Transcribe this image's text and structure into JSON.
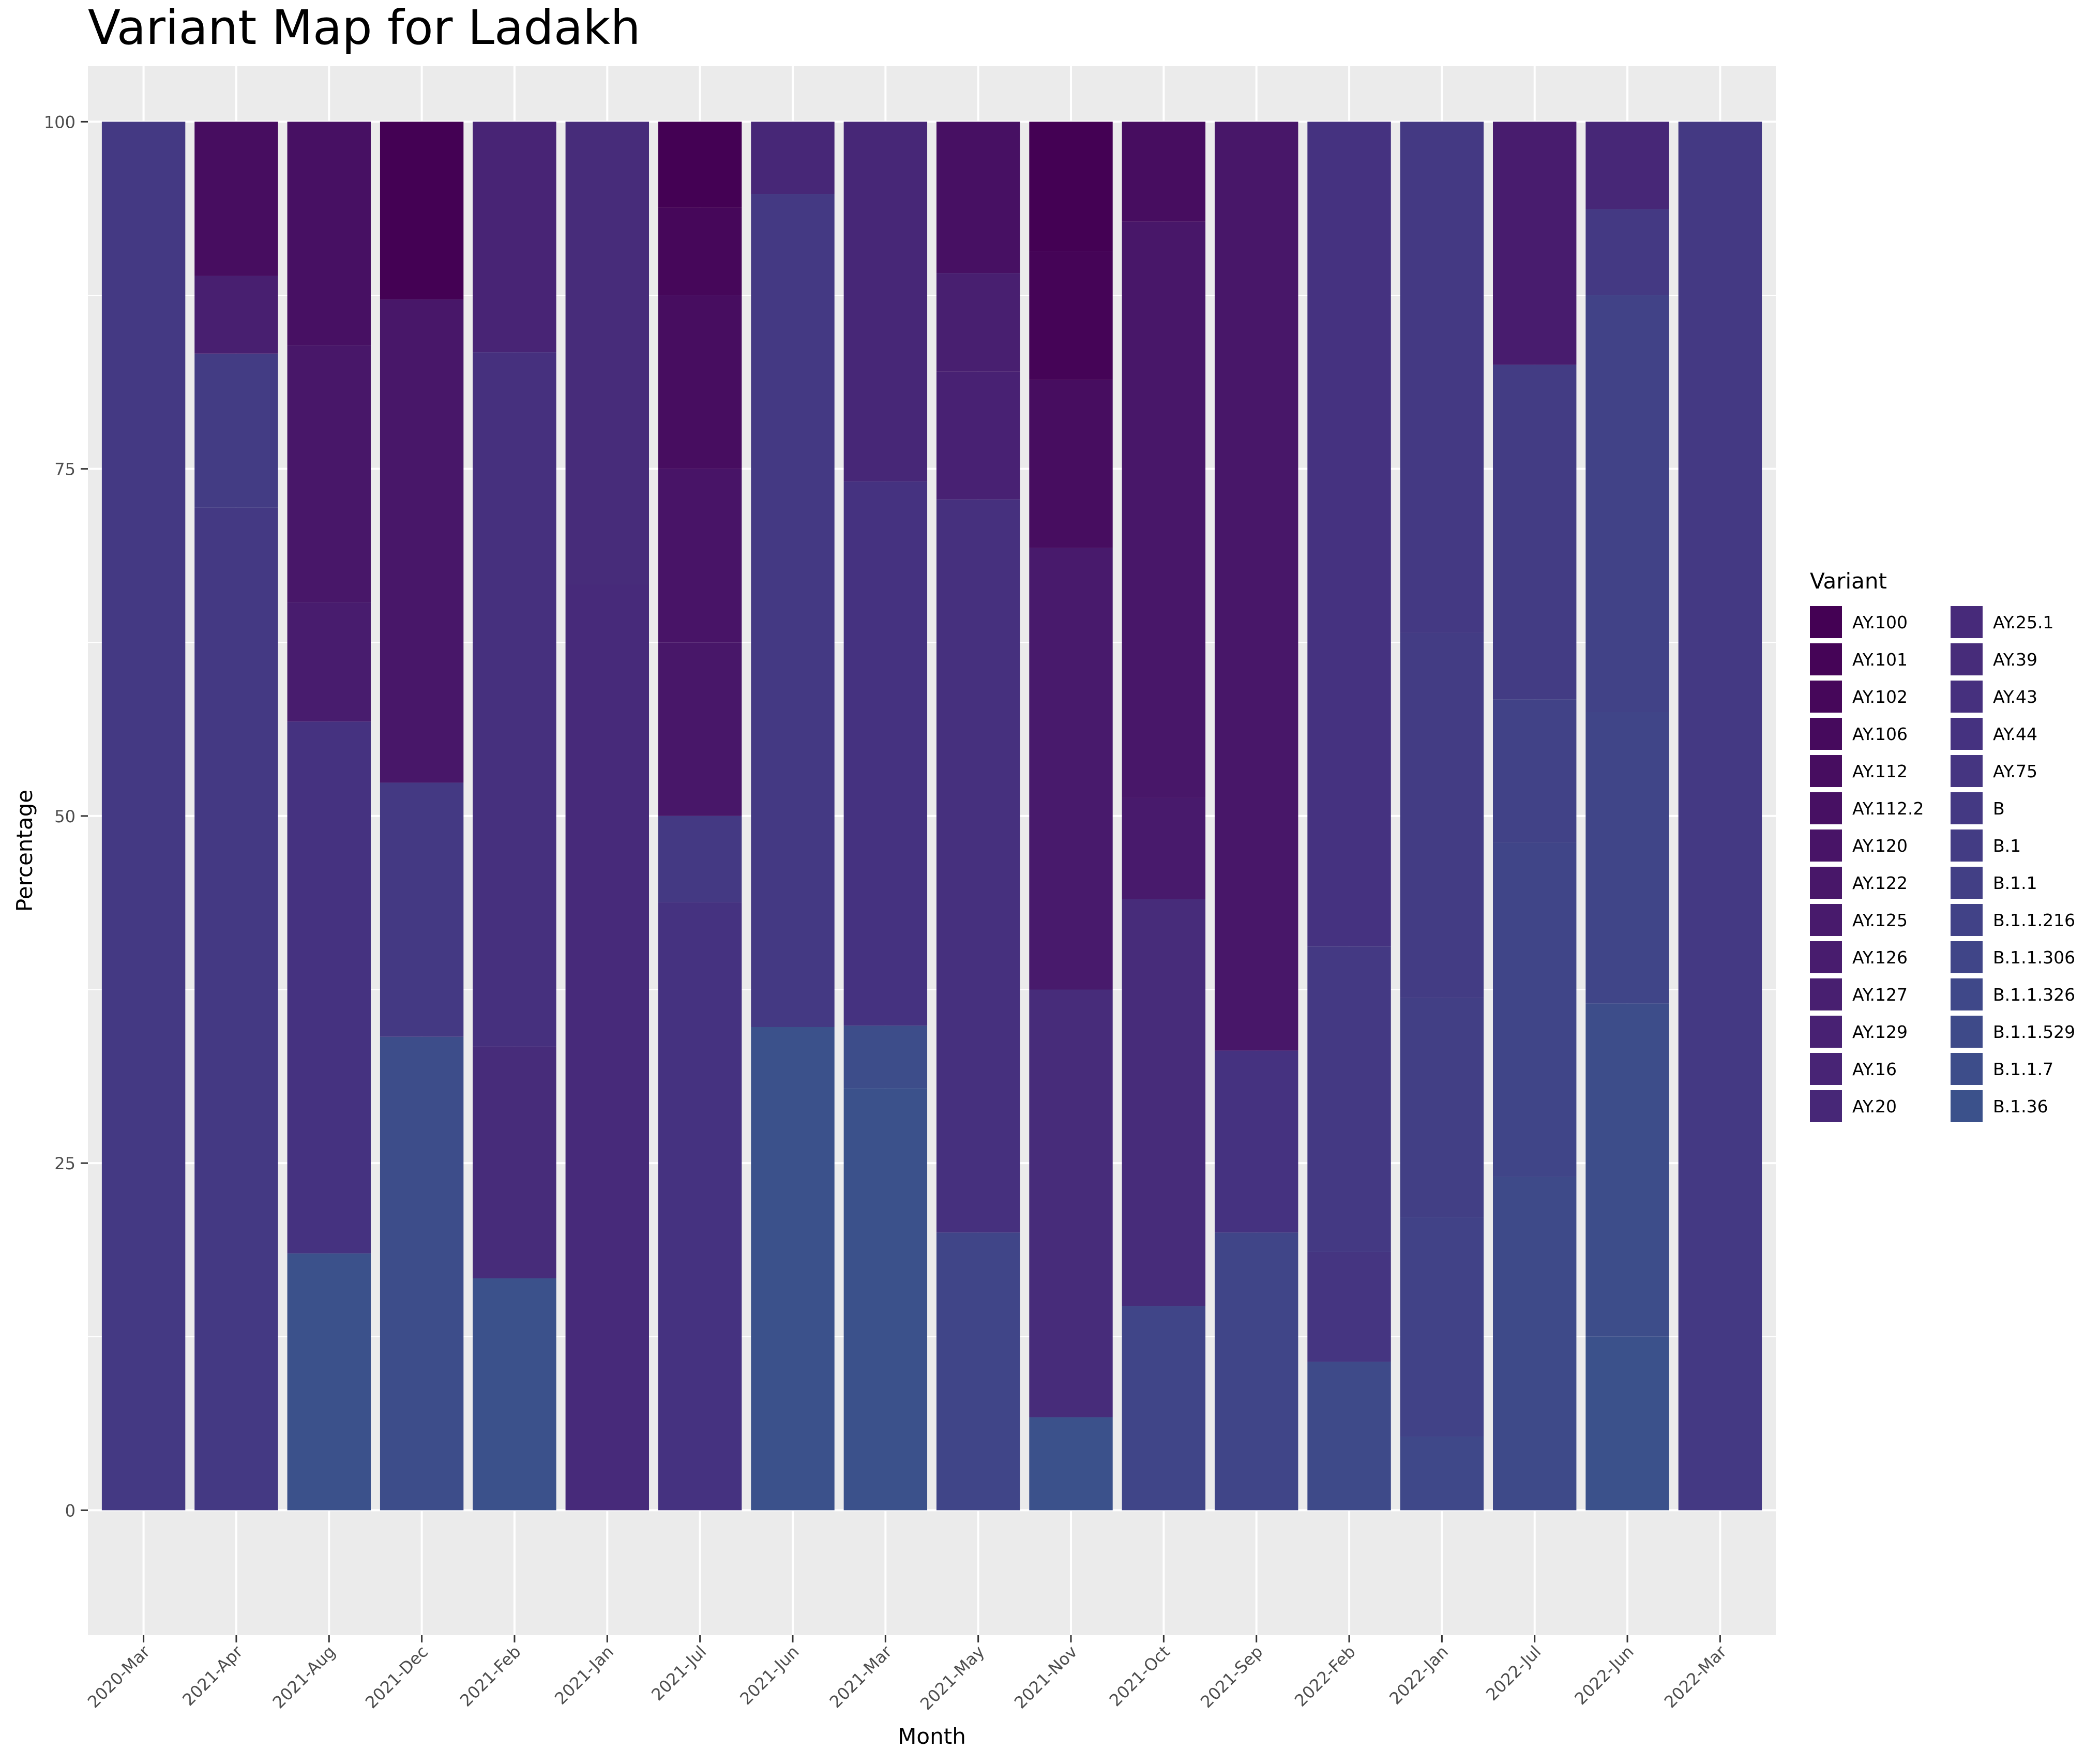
{
  "chart_data": {
    "type": "bar",
    "stacked": true,
    "title": "Variant Map for Ladakh",
    "xlabel": "Month",
    "ylabel": "Percentage",
    "ylim": [
      -9,
      104
    ],
    "yticks": [
      0,
      25,
      50,
      75,
      100
    ],
    "grid": true,
    "legend_title": "Variant",
    "legend_position": "right",
    "panel_background": "#EBEBEB",
    "grid_color": "#FFFFFF",
    "legend_items": [
      {
        "label": "AY.100",
        "color": "#440154"
      },
      {
        "label": "AY.101",
        "color": "#450457"
      },
      {
        "label": "AY.102",
        "color": "#46075A"
      },
      {
        "label": "AY.106",
        "color": "#460A5D"
      },
      {
        "label": "AY.112",
        "color": "#470D60"
      },
      {
        "label": "AY.112.2",
        "color": "#471063"
      },
      {
        "label": "AY.120",
        "color": "#481467"
      },
      {
        "label": "AY.122",
        "color": "#481769"
      },
      {
        "label": "AY.125",
        "color": "#481A6C"
      },
      {
        "label": "AY.126",
        "color": "#481C6E"
      },
      {
        "label": "AY.127",
        "color": "#481F70"
      },
      {
        "label": "AY.129",
        "color": "#482173"
      },
      {
        "label": "AY.16",
        "color": "#482475"
      },
      {
        "label": "AY.20",
        "color": "#472777"
      },
      {
        "label": "AY.25.1",
        "color": "#472A7A"
      },
      {
        "label": "AY.39",
        "color": "#472C7A"
      },
      {
        "label": "AY.43",
        "color": "#46307E"
      },
      {
        "label": "AY.44",
        "color": "#453280"
      },
      {
        "label": "AY.75",
        "color": "#453581"
      },
      {
        "label": "B",
        "color": "#443983"
      },
      {
        "label": "B.1",
        "color": "#433C84"
      },
      {
        "label": "B.1.1",
        "color": "#423F85"
      },
      {
        "label": "B.1.1.216",
        "color": "#414287"
      },
      {
        "label": "B.1.1.306",
        "color": "#404588"
      },
      {
        "label": "B.1.1.326",
        "color": "#3F4889"
      },
      {
        "label": "B.1.1.529",
        "color": "#3E4A89"
      },
      {
        "label": "B.1.1.7",
        "color": "#3D4D8A"
      },
      {
        "label": "B.1.36",
        "color": "#3B518B"
      }
    ],
    "categories": [
      "2020-Mar",
      "2021-Apr",
      "2021-Aug",
      "2021-Dec",
      "2021-Feb",
      "2021-Jan",
      "2021-Jul",
      "2021-Jun",
      "2021-Mar",
      "2021-May",
      "2021-Nov",
      "2021-Oct",
      "2021-Sep",
      "2022-Feb",
      "2022-Jan",
      "2022-Jul",
      "2022-Jun",
      "2022-Mar"
    ],
    "stacks": [
      [
        {
          "variant": "B",
          "value": 100
        }
      ],
      [
        {
          "variant": "B",
          "value": 72.2
        },
        {
          "variant": "B.1",
          "value": 11.1
        },
        {
          "variant": "AY.127",
          "value": 5.6
        },
        {
          "variant": "AY.112",
          "value": 11.1
        }
      ],
      [
        {
          "variant": "B.1.36",
          "value": 18.5
        },
        {
          "variant": "AY.44",
          "value": 38.3
        },
        {
          "variant": "AY.126",
          "value": 8.6
        },
        {
          "variant": "AY.122",
          "value": 18.5
        },
        {
          "variant": "AY.112.2",
          "value": 16.1
        }
      ],
      [
        {
          "variant": "B.1.1.7",
          "value": 34.1
        },
        {
          "variant": "B",
          "value": 18.3
        },
        {
          "variant": "AY.122",
          "value": 34.8
        },
        {
          "variant": "AY.100",
          "value": 12.8
        }
      ],
      [
        {
          "variant": "B.1.36",
          "value": 16.7
        },
        {
          "variant": "AY.39",
          "value": 16.7
        },
        {
          "variant": "AY.43",
          "value": 50.0
        },
        {
          "variant": "AY.16",
          "value": 16.6
        }
      ],
      [
        {
          "variant": "AY.25.1",
          "value": 66.7
        },
        {
          "variant": "AY.39",
          "value": 33.3
        }
      ],
      [
        {
          "variant": "AY.44",
          "value": 43.8
        },
        {
          "variant": "B",
          "value": 6.2
        },
        {
          "variant": "AY.122",
          "value": 12.5
        },
        {
          "variant": "AY.120",
          "value": 12.5
        },
        {
          "variant": "AY.112",
          "value": 12.5
        },
        {
          "variant": "AY.102",
          "value": 6.3
        },
        {
          "variant": "AY.100",
          "value": 6.2
        }
      ],
      [
        {
          "variant": "B.1.36",
          "value": 34.8
        },
        {
          "variant": "B",
          "value": 60.0
        },
        {
          "variant": "AY.20",
          "value": 5.2
        }
      ],
      [
        {
          "variant": "B.1.36",
          "value": 30.4
        },
        {
          "variant": "B.1.1.7",
          "value": 4.5
        },
        {
          "variant": "AY.44",
          "value": 39.2
        },
        {
          "variant": "AY.20",
          "value": 25.9
        }
      ],
      [
        {
          "variant": "B.1.1.306",
          "value": 20.0
        },
        {
          "variant": "AY.43",
          "value": 52.8
        },
        {
          "variant": "AY.129",
          "value": 9.2
        },
        {
          "variant": "AY.127",
          "value": 7.1
        },
        {
          "variant": "AY.112.2",
          "value": 10.9
        }
      ],
      [
        {
          "variant": "B.1.36",
          "value": 6.7
        },
        {
          "variant": "AY.39",
          "value": 30.8
        },
        {
          "variant": "AY.125",
          "value": 31.8
        },
        {
          "variant": "AY.112",
          "value": 12.1
        },
        {
          "variant": "AY.101",
          "value": 9.3
        },
        {
          "variant": "AY.100",
          "value": 9.3
        }
      ],
      [
        {
          "variant": "B.1.1.306",
          "value": 14.7
        },
        {
          "variant": "AY.39",
          "value": 29.3
        },
        {
          "variant": "AY.125",
          "value": 7.3
        },
        {
          "variant": "AY.122",
          "value": 41.5
        },
        {
          "variant": "AY.112",
          "value": 7.2
        }
      ],
      [
        {
          "variant": "B.1.1.306",
          "value": 20.0
        },
        {
          "variant": "AY.44",
          "value": 13.1
        },
        {
          "variant": "AY.122",
          "value": 66.9
        }
      ],
      [
        {
          "variant": "B.1.1.529",
          "value": 10.7
        },
        {
          "variant": "AY.75",
          "value": 7.9
        },
        {
          "variant": "B",
          "value": 22.0
        },
        {
          "variant": "AY.44",
          "value": 59.4
        }
      ],
      [
        {
          "variant": "B.1.1.326",
          "value": 5.3
        },
        {
          "variant": "B.1.1.216",
          "value": 15.8
        },
        {
          "variant": "B.1.1",
          "value": 15.8
        },
        {
          "variant": "B.1",
          "value": 26.3
        },
        {
          "variant": "B",
          "value": 36.8
        }
      ],
      [
        {
          "variant": "B.1.1.529",
          "value": 24.0
        },
        {
          "variant": "B.1.1.306",
          "value": 24.1
        },
        {
          "variant": "B.1.1.216",
          "value": 10.3
        },
        {
          "variant": "B.1",
          "value": 24.1
        },
        {
          "variant": "AY.126",
          "value": 17.5
        }
      ],
      [
        {
          "variant": "B.1.36",
          "value": 12.5
        },
        {
          "variant": "B.1.1.7",
          "value": 24.0
        },
        {
          "variant": "B.1.1.306",
          "value": 21.0
        },
        {
          "variant": "B.1.1.216",
          "value": 30.0
        },
        {
          "variant": "B",
          "value": 6.2
        },
        {
          "variant": "AY.20",
          "value": 6.3
        }
      ],
      [
        {
          "variant": "B",
          "value": 100
        }
      ]
    ]
  }
}
